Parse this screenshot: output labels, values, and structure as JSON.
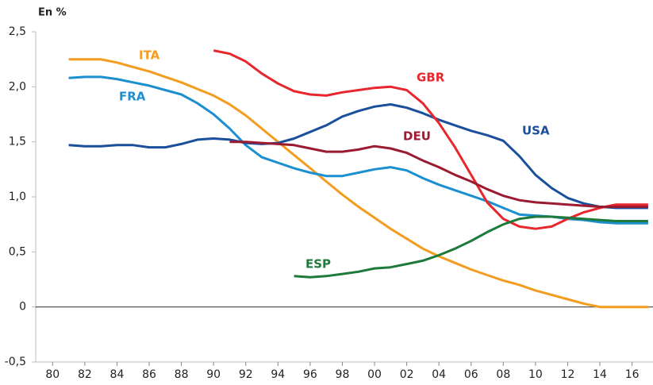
{
  "chart_data": {
    "type": "line",
    "y_label": "En %",
    "x": [
      1981,
      1982,
      1983,
      1984,
      1985,
      1986,
      1987,
      1988,
      1989,
      1990,
      1991,
      1992,
      1993,
      1994,
      1995,
      1996,
      1997,
      1998,
      1999,
      2000,
      2001,
      2002,
      2003,
      2004,
      2005,
      2006,
      2007,
      2008,
      2009,
      2010,
      2011,
      2012,
      2013,
      2014,
      2015,
      2016,
      2017
    ],
    "series": [
      {
        "name": "ITA",
        "color": "#f39c1f",
        "values": [
          2.25,
          2.25,
          2.25,
          2.22,
          2.18,
          2.14,
          2.09,
          2.04,
          1.98,
          1.92,
          1.84,
          1.74,
          1.62,
          1.5,
          1.38,
          1.26,
          1.14,
          1.02,
          0.91,
          0.81,
          0.71,
          0.62,
          0.53,
          0.46,
          0.4,
          0.34,
          0.29,
          0.24,
          0.2,
          0.15,
          0.11,
          0.07,
          0.03,
          0.0,
          0.0,
          0.0,
          0.0
        ]
      },
      {
        "name": "FRA",
        "color": "#1b8fcf",
        "values": [
          2.08,
          2.09,
          2.09,
          2.07,
          2.04,
          2.01,
          1.97,
          1.93,
          1.85,
          1.75,
          1.62,
          1.47,
          1.36,
          1.31,
          1.26,
          1.22,
          1.19,
          1.19,
          1.22,
          1.25,
          1.27,
          1.24,
          1.17,
          1.11,
          1.06,
          1.01,
          0.96,
          0.9,
          0.84,
          0.83,
          0.82,
          0.8,
          0.79,
          0.77,
          0.76,
          0.76,
          0.76
        ]
      },
      {
        "name": "USA",
        "color": "#1a4f9c",
        "values": [
          1.47,
          1.46,
          1.46,
          1.47,
          1.47,
          1.45,
          1.45,
          1.48,
          1.52,
          1.53,
          1.52,
          1.49,
          1.48,
          1.49,
          1.53,
          1.59,
          1.65,
          1.73,
          1.78,
          1.82,
          1.84,
          1.81,
          1.76,
          1.7,
          1.65,
          1.6,
          1.56,
          1.51,
          1.37,
          1.2,
          1.08,
          0.99,
          0.94,
          0.91,
          0.9,
          0.9,
          0.9
        ]
      },
      {
        "name": "GBR",
        "color": "#e8262d",
        "values": [
          null,
          null,
          null,
          null,
          null,
          null,
          null,
          null,
          null,
          2.33,
          2.3,
          2.23,
          2.12,
          2.03,
          1.96,
          1.93,
          1.92,
          1.95,
          1.97,
          1.99,
          2.0,
          1.97,
          1.85,
          1.67,
          1.45,
          1.2,
          0.95,
          0.8,
          0.73,
          0.71,
          0.73,
          0.8,
          0.86,
          0.9,
          0.93,
          0.93,
          0.93
        ]
      },
      {
        "name": "DEU",
        "color": "#9b1b30",
        "values": [
          null,
          null,
          null,
          null,
          null,
          null,
          null,
          null,
          null,
          null,
          1.5,
          1.5,
          1.49,
          1.48,
          1.47,
          1.44,
          1.41,
          1.41,
          1.43,
          1.46,
          1.44,
          1.4,
          1.33,
          1.27,
          1.2,
          1.14,
          1.07,
          1.01,
          0.97,
          0.95,
          0.94,
          0.93,
          0.92,
          0.91,
          0.91,
          0.91,
          0.91
        ]
      },
      {
        "name": "ESP",
        "color": "#1d7a3a",
        "values": [
          null,
          null,
          null,
          null,
          null,
          null,
          null,
          null,
          null,
          null,
          null,
          null,
          null,
          null,
          0.28,
          0.27,
          0.28,
          0.3,
          0.32,
          0.35,
          0.36,
          0.39,
          0.42,
          0.47,
          0.53,
          0.6,
          0.68,
          0.75,
          0.8,
          0.82,
          0.82,
          0.81,
          0.8,
          0.79,
          0.78,
          0.78,
          0.78
        ]
      }
    ],
    "xlim": [
      1978.95,
      2017.3
    ],
    "ylim": [
      -0.5,
      2.5
    ],
    "xticks": [
      {
        "value": 1980,
        "label": "80"
      },
      {
        "value": 1982,
        "label": "82"
      },
      {
        "value": 1984,
        "label": "84"
      },
      {
        "value": 1986,
        "label": "86"
      },
      {
        "value": 1988,
        "label": "88"
      },
      {
        "value": 1990,
        "label": "90"
      },
      {
        "value": 1992,
        "label": "92"
      },
      {
        "value": 1994,
        "label": "94"
      },
      {
        "value": 1996,
        "label": "96"
      },
      {
        "value": 1998,
        "label": "98"
      },
      {
        "value": 2000,
        "label": "00"
      },
      {
        "value": 2002,
        "label": "02"
      },
      {
        "value": 2004,
        "label": "04"
      },
      {
        "value": 2006,
        "label": "06"
      },
      {
        "value": 2008,
        "label": "08"
      },
      {
        "value": 2010,
        "label": "10"
      },
      {
        "value": 2012,
        "label": "12"
      },
      {
        "value": 2014,
        "label": "14"
      },
      {
        "value": 2016,
        "label": "16"
      }
    ],
    "yticks": [
      {
        "value": 2.5,
        "label": "2,5"
      },
      {
        "value": 2.0,
        "label": "2,0"
      },
      {
        "value": 1.5,
        "label": "1,5"
      },
      {
        "value": 1.0,
        "label": "1,0"
      },
      {
        "value": 0.5,
        "label": "0,5"
      },
      0,
      {
        "value": -0.5,
        "label": "-0,5"
      }
    ]
  }
}
